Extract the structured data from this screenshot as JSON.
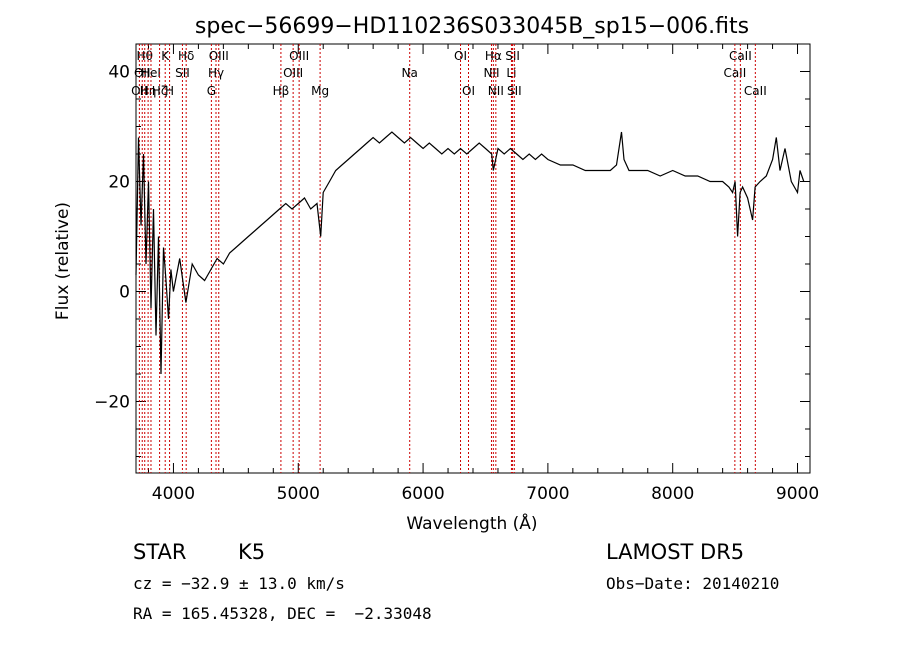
{
  "chart_data": {
    "type": "line",
    "title": "spec−56699−HD110236S033045B_sp15−006.fits",
    "xlabel": "Wavelength (Å)",
    "ylabel": "Flux (relative)",
    "xlim": [
      3700,
      9100
    ],
    "ylim": [
      -33,
      45
    ],
    "xticks": [
      4000,
      5000,
      6000,
      7000,
      8000,
      9000
    ],
    "yticks": [
      -20,
      0,
      20,
      40
    ],
    "ytick_labels": [
      "−20",
      "0",
      "20",
      "40"
    ],
    "grid": false,
    "line_color": "#000000",
    "marker_color": "#cc0000",
    "series": [
      {
        "x": [
          3700,
          3720,
          3740,
          3760,
          3780,
          3800,
          3820,
          3840,
          3860,
          3880,
          3900,
          3920,
          3940,
          3960,
          3980,
          4000,
          4050,
          4100,
          4150,
          4200,
          4250,
          4300,
          4350,
          4400,
          4450,
          4500,
          4550,
          4600,
          4650,
          4700,
          4750,
          4800,
          4850,
          4900,
          4950,
          5000,
          5050,
          5100,
          5150,
          5180,
          5200,
          5250,
          5300,
          5350,
          5400,
          5450,
          5500,
          5550,
          5600,
          5650,
          5700,
          5750,
          5800,
          5850,
          5900,
          5950,
          6000,
          6050,
          6100,
          6150,
          6200,
          6250,
          6300,
          6350,
          6400,
          6450,
          6500,
          6550,
          6563,
          6600,
          6650,
          6700,
          6750,
          6800,
          6850,
          6900,
          6950,
          7000,
          7100,
          7200,
          7300,
          7400,
          7500,
          7550,
          7590,
          7610,
          7650,
          7700,
          7800,
          7900,
          8000,
          8100,
          8200,
          8300,
          8400,
          8450,
          8480,
          8500,
          8520,
          8540,
          8560,
          8600,
          8640,
          8660,
          8700,
          8750,
          8800,
          8830,
          8860,
          8900,
          8950,
          9000,
          9020,
          9050
        ],
        "y": [
          3,
          28,
          12,
          25,
          5,
          20,
          -3,
          15,
          -8,
          10,
          -15,
          8,
          2,
          -5,
          4,
          0,
          6,
          -2,
          5,
          3,
          2,
          4,
          6,
          5,
          7,
          8,
          9,
          10,
          11,
          12,
          13,
          14,
          15,
          16,
          15,
          16,
          17,
          15,
          16,
          10,
          18,
          20,
          22,
          23,
          24,
          25,
          26,
          27,
          28,
          27,
          28,
          29,
          28,
          27,
          28,
          27,
          26,
          27,
          26,
          25,
          26,
          25,
          26,
          25,
          26,
          27,
          26,
          25,
          22,
          26,
          25,
          26,
          25,
          24,
          25,
          24,
          25,
          24,
          23,
          23,
          22,
          22,
          22,
          23,
          29,
          24,
          22,
          22,
          22,
          21,
          22,
          21,
          21,
          20,
          20,
          19,
          18,
          20,
          10,
          18,
          19,
          17,
          13,
          19,
          20,
          21,
          24,
          28,
          22,
          26,
          20,
          18,
          22,
          20
        ]
      }
    ],
    "lines": [
      {
        "x": 3727,
        "label": "OII",
        "row": 3
      },
      {
        "x": 3750,
        "label": "OII",
        "row": 2
      },
      {
        "x": 3770,
        "label": "Hθ",
        "row": 1
      },
      {
        "x": 3797,
        "label": "Hη",
        "row": 3
      },
      {
        "x": 3820,
        "label": "HeI",
        "row": 2
      },
      {
        "x": 3889,
        "label": "Hζ",
        "row": 3
      },
      {
        "x": 3934,
        "label": "K",
        "row": 1
      },
      {
        "x": 3969,
        "label": "H",
        "row": 3
      },
      {
        "x": 4072,
        "label": "SII",
        "row": 2
      },
      {
        "x": 4102,
        "label": "Hδ",
        "row": 1
      },
      {
        "x": 4304,
        "label": "G",
        "row": 3
      },
      {
        "x": 4341,
        "label": "Hγ",
        "row": 2
      },
      {
        "x": 4363,
        "label": "OIII",
        "row": 1
      },
      {
        "x": 4861,
        "label": "Hβ",
        "row": 3
      },
      {
        "x": 4959,
        "label": "OIII",
        "row": 2
      },
      {
        "x": 5007,
        "label": "OIII",
        "row": 1
      },
      {
        "x": 5175,
        "label": "Mg",
        "row": 3
      },
      {
        "x": 5893,
        "label": "Na",
        "row": 2
      },
      {
        "x": 6300,
        "label": "OI",
        "row": 1
      },
      {
        "x": 6364,
        "label": "OI",
        "row": 3
      },
      {
        "x": 6548,
        "label": "NII",
        "row": 2
      },
      {
        "x": 6563,
        "label": "Hα",
        "row": 1
      },
      {
        "x": 6583,
        "label": "NII",
        "row": 3
      },
      {
        "x": 6708,
        "label": "Li",
        "row": 2
      },
      {
        "x": 6717,
        "label": "SII",
        "row": 1
      },
      {
        "x": 6731,
        "label": "SII",
        "row": 3
      },
      {
        "x": 8498,
        "label": "CaII",
        "row": 2
      },
      {
        "x": 8542,
        "label": "CaII",
        "row": 1
      },
      {
        "x": 8662,
        "label": "CaII",
        "row": 3
      }
    ]
  },
  "info": {
    "class": "STAR",
    "subclass": "K5",
    "survey": "LAMOST DR5",
    "cz": "cz = −32.9 ± 13.0 km/s",
    "obs_date": "Obs−Date: 20140210",
    "radec": "RA = 165.45328, DEC =  −2.33048"
  }
}
